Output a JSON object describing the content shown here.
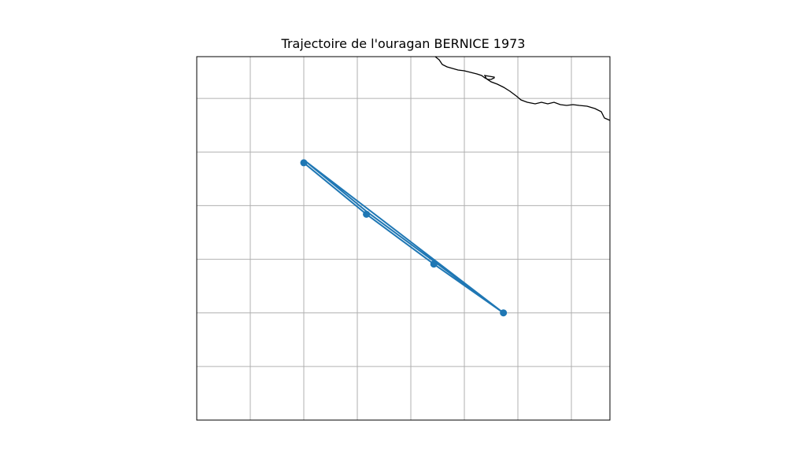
{
  "title": "Trajectoire de l'ouragan BERNICE 1973",
  "colors": {
    "track": "#1f77b4",
    "grid": "#b0b0b0",
    "coast": "#000000",
    "frame": "#000000"
  },
  "chart_data": {
    "type": "line",
    "title": "Trajectoire de l'ouragan BERNICE 1973",
    "grid": true,
    "tick_labels_visible": false,
    "track_order_note": "",
    "track": [
      {
        "lon": 2.0,
        "lat": 4.8
      },
      {
        "lon": 3.17,
        "lat": 3.84
      },
      {
        "lon": 4.43,
        "lat": 2.91
      },
      {
        "lon": 5.73,
        "lat": 2.0
      },
      {
        "lon": 4.43,
        "lat": 2.91
      },
      {
        "lon": 3.17,
        "lat": 3.84
      },
      {
        "lon": 2.0,
        "lat": 4.8
      },
      {
        "lon": 5.73,
        "lat": 2.0
      }
    ],
    "xlim": [
      0,
      7.72
    ],
    "ylim": [
      0,
      6.78
    ]
  }
}
